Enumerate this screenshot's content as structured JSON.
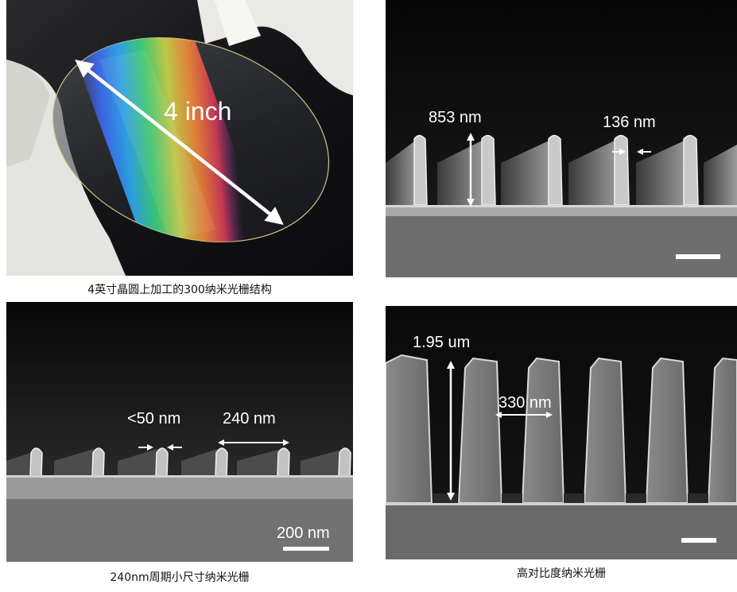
{
  "panels": {
    "wafer": {
      "caption": "4英寸晶圆上加工的300纳米光栅结构",
      "size_label": "4 inch"
    },
    "grating_300": {
      "height_label": "853 nm",
      "width_label": "136 nm"
    },
    "grating_240": {
      "caption": "240nm周期小尺寸纳米光栅",
      "gap_label": "<50 nm",
      "period_label": "240 nm",
      "scale_label": "200 nm"
    },
    "high_aspect": {
      "caption": "高对比度纳米光栅",
      "height_label": "1.95 um",
      "width_label": "330 nm"
    }
  }
}
